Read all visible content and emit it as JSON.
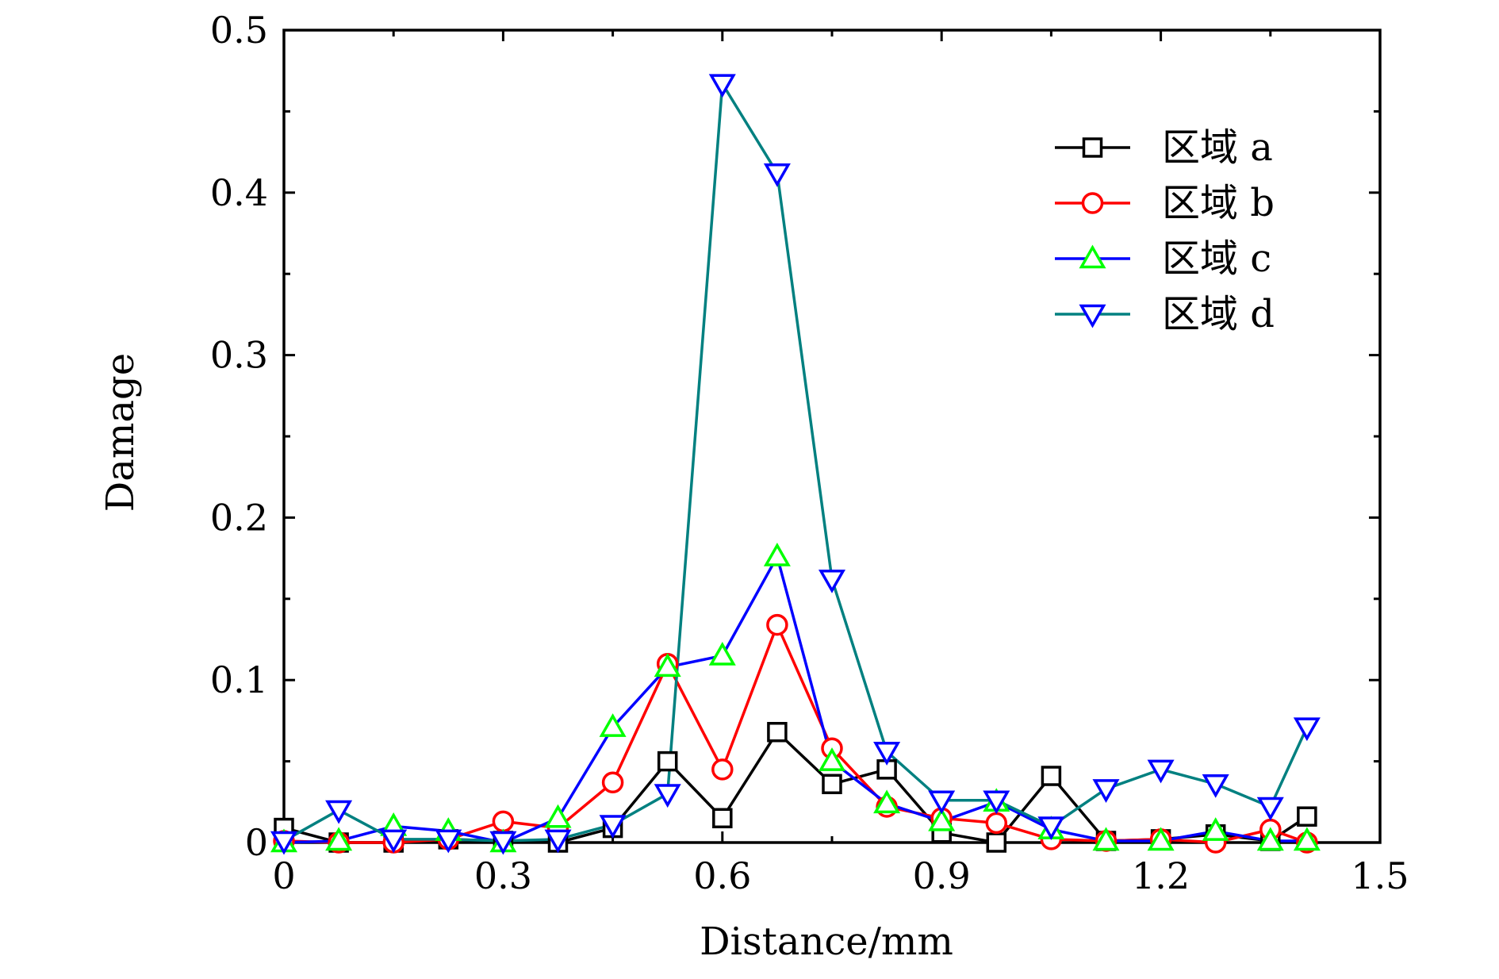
{
  "chart_data": {
    "type": "line",
    "xlabel": "Distance/mm",
    "ylabel": "Damage",
    "xlim": [
      0,
      1.5
    ],
    "ylim": [
      0,
      0.5
    ],
    "xticks": [
      "0",
      "0.3",
      "0.6",
      "0.9",
      "1.2",
      "1.5"
    ],
    "yticks": [
      "0",
      "0.1",
      "0.2",
      "0.3",
      "0.4",
      "0.5"
    ],
    "x": [
      0,
      0.075,
      0.15,
      0.225,
      0.3,
      0.375,
      0.45,
      0.525,
      0.6,
      0.675,
      0.75,
      0.825,
      0.9,
      0.975,
      1.05,
      1.125,
      1.2,
      1.275,
      1.35,
      1.4
    ],
    "grid": false,
    "legend_position": "top-right",
    "series": [
      {
        "name": "区域 a",
        "color": "#000000",
        "marker": "square",
        "values": [
          0.009,
          0.0,
          0.0,
          0.002,
          0.001,
          0.0,
          0.009,
          0.05,
          0.015,
          0.068,
          0.036,
          0.045,
          0.006,
          0.0,
          0.041,
          0.001,
          0.002,
          0.005,
          0.001,
          0.016
        ]
      },
      {
        "name": "区域 b",
        "color": "#ff0000",
        "marker": "circle",
        "values": [
          0.001,
          0.0,
          0.0,
          0.002,
          0.013,
          0.009,
          0.037,
          0.11,
          0.045,
          0.134,
          0.058,
          0.022,
          0.015,
          0.012,
          0.002,
          0.001,
          0.002,
          0.0,
          0.008,
          0.0
        ]
      },
      {
        "name": "区域 c",
        "color": "#0000ff",
        "marker_fill": "#00ff00",
        "marker": "triangle-up",
        "values": [
          0.0,
          0.001,
          0.01,
          0.007,
          0.0,
          0.015,
          0.071,
          0.108,
          0.115,
          0.176,
          0.05,
          0.024,
          0.013,
          0.025,
          0.008,
          0.001,
          0.001,
          0.007,
          0.001,
          0.001
        ]
      },
      {
        "name": "区域 d",
        "color": "#008080",
        "marker_fill": "#0000ff",
        "marker": "triangle-down",
        "values": [
          0.001,
          0.02,
          0.002,
          0.002,
          0.001,
          0.002,
          0.011,
          0.03,
          0.467,
          0.412,
          0.162,
          0.056,
          0.026,
          0.026,
          0.01,
          0.033,
          0.045,
          0.036,
          0.022,
          0.071
        ]
      }
    ]
  }
}
